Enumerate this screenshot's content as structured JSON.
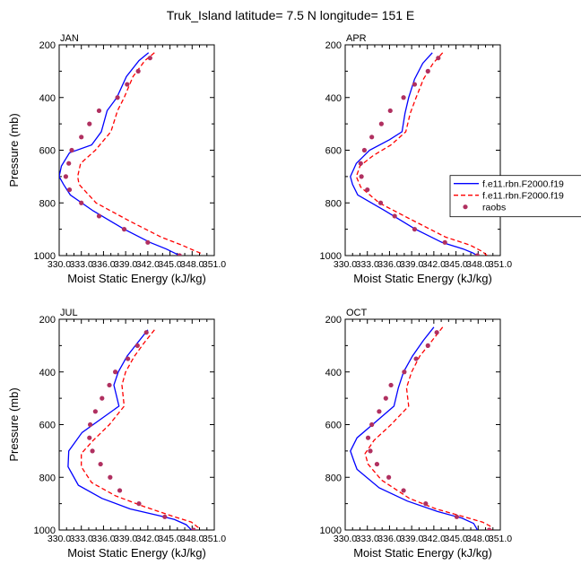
{
  "figure": {
    "title": "Truk_Island  latitude= 7.5 N longitude= 151 E"
  },
  "chart_data": [
    {
      "type": "line",
      "panel_label": "JAN",
      "xlabel": "Moist Static Energy (kJ/kg)",
      "ylabel": "Pressure (mb)",
      "xlim": [
        330,
        351
      ],
      "ylim": [
        1000,
        200
      ],
      "y_reversed": true,
      "xticks": [
        "330.0",
        "333.0",
        "336.0",
        "339.0",
        "342.0",
        "345.0",
        "348.0",
        "351.0"
      ],
      "yticks": [
        "200",
        "400",
        "600",
        "800",
        "1000"
      ],
      "legend": null,
      "series": [
        {
          "name": "f.e11.rbn.F2000.f19",
          "color": "#0000ff",
          "dash": "solid",
          "points": [
            [
              342.1,
              230
            ],
            [
              340.8,
              260
            ],
            [
              339.1,
              320
            ],
            [
              337.8,
              400
            ],
            [
              336.5,
              450
            ],
            [
              335.7,
              530
            ],
            [
              334.4,
              580
            ],
            [
              331.4,
              610
            ],
            [
              330.3,
              660
            ],
            [
              330.0,
              700
            ],
            [
              330.6,
              730
            ],
            [
              331.5,
              770
            ],
            [
              334.6,
              830
            ],
            [
              338.8,
              900
            ],
            [
              342.3,
              950
            ],
            [
              344.5,
              975
            ],
            [
              345.6,
              990
            ],
            [
              346.3,
              1000
            ]
          ]
        },
        {
          "name": "f.e11.rbn.F2000.f19",
          "color": "#ff0000",
          "dash": "dashed",
          "points": [
            [
              342.9,
              230
            ],
            [
              341.6,
              260
            ],
            [
              340.0,
              320
            ],
            [
              338.8,
              400
            ],
            [
              337.9,
              450
            ],
            [
              337.0,
              530
            ],
            [
              334.9,
              600
            ],
            [
              332.9,
              650
            ],
            [
              332.5,
              700
            ],
            [
              332.7,
              730
            ],
            [
              335.0,
              800
            ],
            [
              339.6,
              870
            ],
            [
              343.8,
              930
            ],
            [
              346.6,
              960
            ],
            [
              348.2,
              980
            ],
            [
              349.1,
              990
            ],
            [
              349.3,
              1000
            ]
          ]
        },
        {
          "name": "raobs",
          "color": "#b03060",
          "dash": "none",
          "marker": "circle",
          "points": [
            [
              342.3,
              250
            ],
            [
              340.7,
              300
            ],
            [
              339.2,
              350
            ],
            [
              337.9,
              400
            ],
            [
              335.4,
              450
            ],
            [
              334.1,
              500
            ],
            [
              333.0,
              550
            ],
            [
              331.7,
              600
            ],
            [
              331.3,
              650
            ],
            [
              330.9,
              700
            ],
            [
              331.4,
              750
            ],
            [
              333.0,
              800
            ],
            [
              335.4,
              850
            ],
            [
              338.8,
              900
            ],
            [
              342.0,
              950
            ],
            [
              346.3,
              1000
            ]
          ]
        }
      ]
    },
    {
      "type": "line",
      "panel_label": "APR",
      "xlabel": "Moist Static Energy (kJ/kg)",
      "ylabel": "",
      "xlim": [
        330,
        351
      ],
      "ylim": [
        1000,
        200
      ],
      "y_reversed": true,
      "xticks": [
        "330.0",
        "333.0",
        "336.0",
        "339.0",
        "342.0",
        "345.0",
        "348.0",
        "351.0"
      ],
      "yticks": [
        "200",
        "400",
        "600",
        "800",
        "1000"
      ],
      "legend": {
        "position": "right-middle",
        "entries": [
          {
            "label": "f.e11.rbn.F2000.f19",
            "color": "#0000ff",
            "dash": "solid"
          },
          {
            "label": "f.e11.rbn.F2000.f19",
            "color": "#ff0000",
            "dash": "dashed"
          },
          {
            "label": "raobs",
            "color": "#b03060",
            "marker": "circle"
          }
        ]
      },
      "series": [
        {
          "name": "f.e11.rbn.F2000.f19",
          "color": "#0000ff",
          "dash": "solid",
          "points": [
            [
              341.8,
              230
            ],
            [
              340.5,
              270
            ],
            [
              339.4,
              330
            ],
            [
              338.6,
              400
            ],
            [
              338.1,
              460
            ],
            [
              337.7,
              530
            ],
            [
              336.0,
              560
            ],
            [
              333.3,
              600
            ],
            [
              331.5,
              650
            ],
            [
              330.7,
              700
            ],
            [
              331.0,
              730
            ],
            [
              331.7,
              770
            ],
            [
              335.4,
              830
            ],
            [
              339.5,
              900
            ],
            [
              343.1,
              950
            ],
            [
              346.0,
              975
            ],
            [
              347.3,
              990
            ],
            [
              347.9,
              1000
            ]
          ]
        },
        {
          "name": "f.e11.rbn.F2000.f19",
          "color": "#ff0000",
          "dash": "dashed",
          "points": [
            [
              343.2,
              230
            ],
            [
              341.9,
              270
            ],
            [
              340.6,
              330
            ],
            [
              339.6,
              400
            ],
            [
              338.8,
              460
            ],
            [
              338.2,
              530
            ],
            [
              336.2,
              580
            ],
            [
              333.8,
              620
            ],
            [
              332.0,
              660
            ],
            [
              331.5,
              700
            ],
            [
              332.1,
              740
            ],
            [
              334.6,
              800
            ],
            [
              338.7,
              860
            ],
            [
              343.6,
              930
            ],
            [
              346.9,
              960
            ],
            [
              348.6,
              985
            ],
            [
              349.2,
              1000
            ]
          ]
        },
        {
          "name": "raobs",
          "color": "#b03060",
          "dash": "none",
          "marker": "circle",
          "points": [
            [
              342.6,
              250
            ],
            [
              341.2,
              300
            ],
            [
              339.4,
              350
            ],
            [
              337.9,
              400
            ],
            [
              336.1,
              450
            ],
            [
              334.9,
              500
            ],
            [
              333.6,
              550
            ],
            [
              332.6,
              600
            ],
            [
              332.1,
              650
            ],
            [
              332.2,
              700
            ],
            [
              333.0,
              750
            ],
            [
              334.8,
              800
            ],
            [
              336.7,
              850
            ],
            [
              339.4,
              900
            ],
            [
              343.5,
              950
            ],
            [
              347.9,
              1000
            ]
          ]
        }
      ]
    },
    {
      "type": "line",
      "panel_label": "JUL",
      "xlabel": "Moist Static Energy (kJ/kg)",
      "ylabel": "Pressure (mb)",
      "xlim": [
        330,
        351
      ],
      "ylim": [
        1000,
        200
      ],
      "y_reversed": true,
      "xticks": [
        "330.0",
        "333.0",
        "336.0",
        "339.0",
        "342.0",
        "345.0",
        "348.0",
        "351.0"
      ],
      "yticks": [
        "200",
        "400",
        "600",
        "800",
        "1000"
      ],
      "legend": null,
      "series": [
        {
          "name": "f.e11.rbn.F2000.f19",
          "color": "#0000ff",
          "dash": "solid",
          "points": [
            [
              342.0,
              240
            ],
            [
              340.6,
              290
            ],
            [
              339.2,
              340
            ],
            [
              338.0,
              400
            ],
            [
              337.4,
              450
            ],
            [
              338.1,
              530
            ],
            [
              335.6,
              580
            ],
            [
              333.1,
              630
            ],
            [
              331.3,
              700
            ],
            [
              331.2,
              760
            ],
            [
              332.6,
              830
            ],
            [
              335.8,
              880
            ],
            [
              339.6,
              920
            ],
            [
              343.4,
              945
            ],
            [
              345.6,
              960
            ],
            [
              347.2,
              980
            ],
            [
              347.9,
              1000
            ]
          ]
        },
        {
          "name": "f.e11.rbn.F2000.f19",
          "color": "#ff0000",
          "dash": "dashed",
          "points": [
            [
              342.9,
              240
            ],
            [
              341.5,
              290
            ],
            [
              340.2,
              340
            ],
            [
              339.0,
              400
            ],
            [
              338.5,
              450
            ],
            [
              338.8,
              530
            ],
            [
              336.8,
              600
            ],
            [
              334.6,
              660
            ],
            [
              333.0,
              710
            ],
            [
              333.0,
              760
            ],
            [
              334.4,
              820
            ],
            [
              337.6,
              870
            ],
            [
              341.4,
              910
            ],
            [
              345.6,
              950
            ],
            [
              347.9,
              970
            ],
            [
              348.8,
              990
            ],
            [
              348.6,
              1000
            ]
          ]
        },
        {
          "name": "raobs",
          "color": "#b03060",
          "dash": "none",
          "marker": "circle",
          "points": [
            [
              341.8,
              250
            ],
            [
              340.6,
              300
            ],
            [
              339.3,
              350
            ],
            [
              337.6,
              400
            ],
            [
              336.8,
              450
            ],
            [
              335.8,
              500
            ],
            [
              334.9,
              550
            ],
            [
              334.2,
              600
            ],
            [
              334.1,
              650
            ],
            [
              334.5,
              700
            ],
            [
              335.6,
              750
            ],
            [
              336.9,
              800
            ],
            [
              338.2,
              850
            ],
            [
              340.8,
              900
            ],
            [
              344.3,
              950
            ],
            [
              348.2,
              1000
            ]
          ]
        }
      ]
    },
    {
      "type": "line",
      "panel_label": "OCT",
      "xlabel": "Moist Static Energy (kJ/kg)",
      "ylabel": "",
      "xlim": [
        330,
        351
      ],
      "ylim": [
        1000,
        200
      ],
      "y_reversed": true,
      "xticks": [
        "330.0",
        "333.0",
        "336.0",
        "339.0",
        "342.0",
        "345.0",
        "348.0",
        "351.0"
      ],
      "yticks": [
        "200",
        "400",
        "600",
        "800",
        "1000"
      ],
      "legend": null,
      "series": [
        {
          "name": "f.e11.rbn.F2000.f19",
          "color": "#0000ff",
          "dash": "solid",
          "points": [
            [
              342.0,
              230
            ],
            [
              340.6,
              280
            ],
            [
              339.1,
              340
            ],
            [
              337.9,
              400
            ],
            [
              337.2,
              460
            ],
            [
              336.6,
              530
            ],
            [
              334.1,
              590
            ],
            [
              331.6,
              650
            ],
            [
              330.7,
              700
            ],
            [
              331.2,
              740
            ],
            [
              331.6,
              770
            ],
            [
              334.6,
              840
            ],
            [
              338.4,
              890
            ],
            [
              342.5,
              930
            ],
            [
              345.8,
              955
            ],
            [
              347.4,
              975
            ],
            [
              347.9,
              1000
            ]
          ]
        },
        {
          "name": "f.e11.rbn.F2000.f19",
          "color": "#ff0000",
          "dash": "dashed",
          "points": [
            [
              343.2,
              230
            ],
            [
              341.8,
              280
            ],
            [
              340.1,
              340
            ],
            [
              339.0,
              400
            ],
            [
              338.3,
              460
            ],
            [
              338.6,
              530
            ],
            [
              336.2,
              600
            ],
            [
              333.9,
              660
            ],
            [
              332.7,
              710
            ],
            [
              333.1,
              750
            ],
            [
              334.9,
              810
            ],
            [
              338.7,
              880
            ],
            [
              342.3,
              920
            ],
            [
              346.1,
              950
            ],
            [
              348.6,
              970
            ],
            [
              349.6,
              985
            ],
            [
              349.8,
              1000
            ]
          ]
        },
        {
          "name": "raobs",
          "color": "#b03060",
          "dash": "none",
          "marker": "circle",
          "points": [
            [
              342.4,
              250
            ],
            [
              341.2,
              300
            ],
            [
              339.6,
              350
            ],
            [
              338.0,
              400
            ],
            [
              336.2,
              450
            ],
            [
              335.5,
              500
            ],
            [
              334.6,
              550
            ],
            [
              333.6,
              600
            ],
            [
              333.1,
              650
            ],
            [
              333.4,
              700
            ],
            [
              334.3,
              750
            ],
            [
              335.9,
              800
            ],
            [
              337.9,
              850
            ],
            [
              340.9,
              900
            ],
            [
              345.1,
              950
            ],
            [
              349.5,
              1000
            ]
          ]
        }
      ]
    }
  ]
}
